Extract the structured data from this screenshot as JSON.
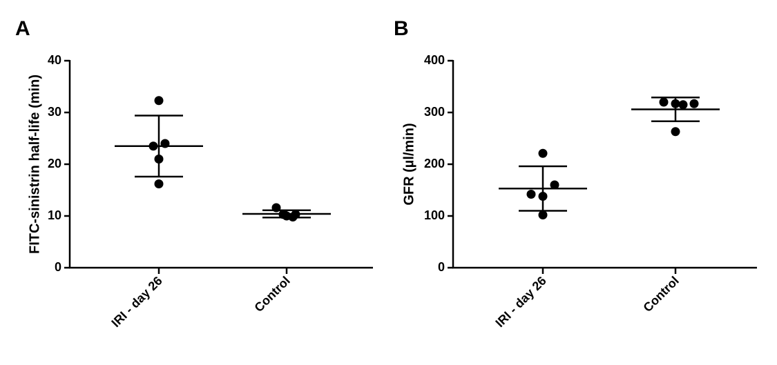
{
  "chart_data": [
    {
      "type": "scatter",
      "panel_label": "A",
      "ylabel": "FITC-sinistrin half-life (min)",
      "ylim": [
        0,
        40
      ],
      "yticks": [
        "0",
        "10",
        "20",
        "30",
        "40"
      ],
      "categories": [
        "IRI - day 26",
        "Control"
      ],
      "groups": [
        {
          "category": "IRI - day 26",
          "points": [
            32.3,
            24.0,
            23.5,
            21.0,
            16.2
          ],
          "mean": 23.5,
          "sd_low": 17.6,
          "sd_high": 29.4
        },
        {
          "category": "Control",
          "points": [
            11.6,
            10.3,
            9.8,
            10.0,
            10.3
          ],
          "mean": 10.4,
          "sd_low": 9.7,
          "sd_high": 11.1
        }
      ]
    },
    {
      "type": "scatter",
      "panel_label": "B",
      "ylabel": "GFR (µl/min)",
      "ylim": [
        0,
        400
      ],
      "yticks": [
        "0",
        "100",
        "200",
        "300",
        "400"
      ],
      "categories": [
        "IRI - day 26",
        "Control"
      ],
      "groups": [
        {
          "category": "IRI - day 26",
          "points": [
            221,
            160,
            142,
            138,
            102
          ],
          "mean": 153,
          "sd_low": 110,
          "sd_high": 196
        },
        {
          "category": "Control",
          "points": [
            320,
            317,
            315,
            317,
            263
          ],
          "mean": 306,
          "sd_low": 283,
          "sd_high": 329
        }
      ]
    }
  ]
}
